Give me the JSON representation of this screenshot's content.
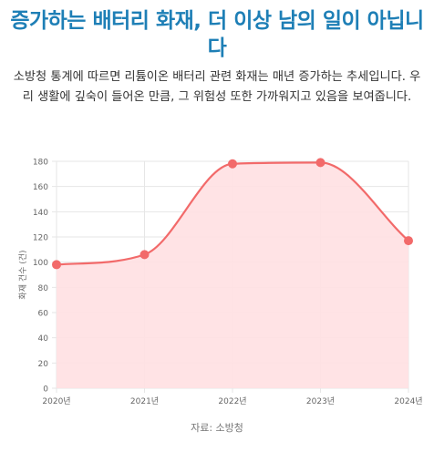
{
  "header": {
    "title": "증가하는 배터리 화재, 더 이상 남의 일이 아닙니다",
    "description": "소방청 통계에 따르면 리튬이온 배터리 관련 화재는 매년 증가하는 추세입니다. 우리 생활에 깊숙이 들어온 만큼, 그 위험성 또한 가까워지고 있음을 보여줍니다."
  },
  "chart_data": {
    "type": "area",
    "categories": [
      "2020년",
      "2021년",
      "2022년",
      "2023년",
      "2024년"
    ],
    "values": [
      98,
      106,
      178,
      179,
      117
    ],
    "ylabel": "화재 건수 (건)",
    "xlabel": "",
    "ylim": [
      0,
      180
    ],
    "yticks": [
      0,
      20,
      40,
      60,
      80,
      100,
      120,
      140,
      160,
      180
    ],
    "grid": true,
    "line_color": "#f26a6a",
    "fill_color": "#ffe0e2",
    "grid_color": "#e6e6e6"
  },
  "footer": {
    "source": "자료: 소방청"
  }
}
